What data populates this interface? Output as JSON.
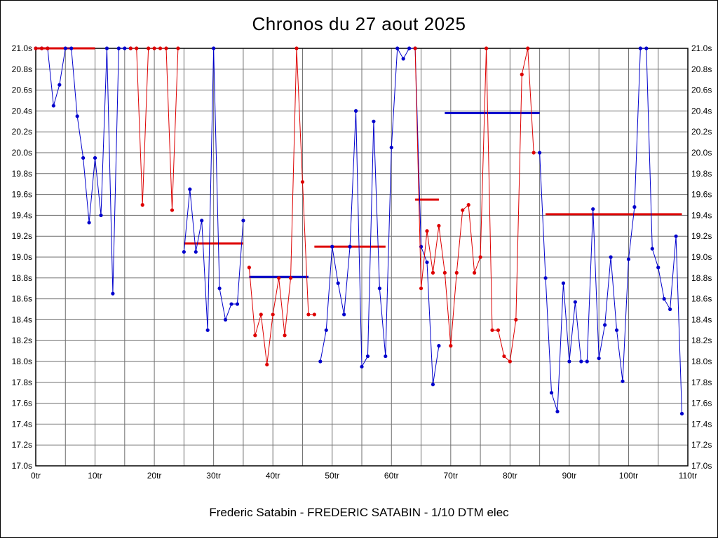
{
  "title": "Chronos du 27 aout 2025",
  "caption": "Frederic Satabin - FREDERIC SATABIN - 1/10 DTM elec",
  "colors": {
    "blue_series": "#0000CC",
    "red_series": "#DD0000",
    "grid": "#6E6E6E",
    "frame": "#000000",
    "background": "#FFFFFF",
    "text": "#000000"
  },
  "chart_data": {
    "type": "line",
    "title": "Chronos du 27 aout 2025",
    "subtitle": "Frederic Satabin - FREDERIC SATABIN - 1/10 DTM elec",
    "xlabel": "",
    "ylabel": "",
    "x_unit": "tr",
    "y_unit": "s",
    "xlim": [
      0,
      110
    ],
    "ylim": [
      17.0,
      21.0
    ],
    "grid": true,
    "x_grid_step": 5,
    "y_grid_step": 0.2,
    "clip_note": "lap times above 21.0s are clipped to the 21.0s top line",
    "x_ticks": [
      {
        "value": 0,
        "label": "0tr"
      },
      {
        "value": 10,
        "label": "10tr"
      },
      {
        "value": 20,
        "label": "20tr"
      },
      {
        "value": 30,
        "label": "30tr"
      },
      {
        "value": 40,
        "label": "40tr"
      },
      {
        "value": 50,
        "label": "50tr"
      },
      {
        "value": 60,
        "label": "60tr"
      },
      {
        "value": 70,
        "label": "70tr"
      },
      {
        "value": 80,
        "label": "80tr"
      },
      {
        "value": 90,
        "label": "90tr"
      },
      {
        "value": 100,
        "label": "100tr"
      },
      {
        "value": 110,
        "label": "110tr"
      }
    ],
    "y_ticks": [
      {
        "value": 21.0,
        "label": "21.0s"
      },
      {
        "value": 20.8,
        "label": "20.8s"
      },
      {
        "value": 20.6,
        "label": "20.6s"
      },
      {
        "value": 20.4,
        "label": "20.4s"
      },
      {
        "value": 20.2,
        "label": "20.2s"
      },
      {
        "value": 20.0,
        "label": "20.0s"
      },
      {
        "value": 19.8,
        "label": "19.8s"
      },
      {
        "value": 19.6,
        "label": "19.6s"
      },
      {
        "value": 19.4,
        "label": "19.4s"
      },
      {
        "value": 19.2,
        "label": "19.2s"
      },
      {
        "value": 19.0,
        "label": "19.0s"
      },
      {
        "value": 18.8,
        "label": "18.8s"
      },
      {
        "value": 18.6,
        "label": "18.6s"
      },
      {
        "value": 18.4,
        "label": "18.4s"
      },
      {
        "value": 18.2,
        "label": "18.2s"
      },
      {
        "value": 18.0,
        "label": "18.0s"
      },
      {
        "value": 17.8,
        "label": "17.8s"
      },
      {
        "value": 17.6,
        "label": "17.6s"
      },
      {
        "value": 17.4,
        "label": "17.4s"
      },
      {
        "value": 17.2,
        "label": "17.2s"
      },
      {
        "value": 17.0,
        "label": "17.0s"
      }
    ],
    "series": [
      {
        "name": "laps-blue",
        "color": "#0000CC",
        "runs": [
          [
            [
              0,
              21
            ],
            [
              1,
              21
            ],
            [
              2,
              21
            ],
            [
              3,
              20.45
            ],
            [
              4,
              20.65
            ],
            [
              5,
              21
            ],
            [
              6,
              21
            ],
            [
              7,
              20.35
            ],
            [
              8,
              19.95
            ],
            [
              9,
              19.33
            ],
            [
              10,
              19.95
            ],
            [
              11,
              19.4
            ],
            [
              12,
              21
            ],
            [
              13,
              18.65
            ],
            [
              14,
              21
            ],
            [
              15,
              21
            ],
            [
              16,
              21
            ]
          ],
          [
            [
              25,
              19.05
            ],
            [
              26,
              19.65
            ],
            [
              27,
              19.05
            ],
            [
              28,
              19.35
            ],
            [
              29,
              18.3
            ],
            [
              30,
              21
            ],
            [
              31,
              18.7
            ],
            [
              32,
              18.4
            ],
            [
              33,
              18.55
            ],
            [
              34,
              18.55
            ],
            [
              35,
              19.35
            ]
          ],
          [
            [
              48,
              18.0
            ],
            [
              49,
              18.3
            ],
            [
              50,
              19.1
            ],
            [
              51,
              18.75
            ],
            [
              52,
              18.45
            ],
            [
              53,
              19.1
            ],
            [
              54,
              20.4
            ],
            [
              55,
              17.95
            ],
            [
              56,
              18.05
            ],
            [
              57,
              20.3
            ],
            [
              58,
              18.7
            ],
            [
              59,
              18.05
            ],
            [
              60,
              20.05
            ],
            [
              61,
              21
            ],
            [
              62,
              20.9
            ],
            [
              63,
              21
            ],
            [
              64,
              21
            ],
            [
              65,
              19.1
            ],
            [
              66,
              18.95
            ],
            [
              67,
              17.78
            ],
            [
              68,
              18.15
            ]
          ],
          [
            [
              85,
              20.0
            ],
            [
              86,
              18.8
            ],
            [
              87,
              17.7
            ],
            [
              88,
              17.52
            ],
            [
              89,
              18.75
            ],
            [
              90,
              18.0
            ],
            [
              91,
              18.57
            ],
            [
              92,
              18.0
            ],
            [
              93,
              18.0
            ],
            [
              94,
              19.46
            ],
            [
              95,
              18.03
            ],
            [
              96,
              18.35
            ],
            [
              97,
              19.0
            ],
            [
              98,
              18.3
            ],
            [
              99,
              17.81
            ],
            [
              100,
              18.98
            ],
            [
              101,
              19.48
            ],
            [
              102,
              21
            ],
            [
              103,
              21
            ],
            [
              104,
              19.08
            ],
            [
              105,
              18.9
            ],
            [
              106,
              18.6
            ],
            [
              107,
              18.5
            ],
            [
              108,
              19.2
            ],
            [
              109,
              17.5
            ]
          ]
        ]
      },
      {
        "name": "laps-red",
        "color": "#DD0000",
        "runs": [
          [
            [
              0,
              21
            ],
            [
              1,
              21
            ],
            [
              2,
              21
            ]
          ],
          [
            [
              16,
              21
            ],
            [
              17,
              21
            ],
            [
              18,
              19.5
            ],
            [
              19,
              21
            ],
            [
              20,
              21
            ],
            [
              21,
              21
            ],
            [
              22,
              21
            ],
            [
              23,
              19.45
            ],
            [
              24,
              21
            ]
          ],
          [
            [
              36,
              18.9
            ],
            [
              37,
              18.25
            ],
            [
              38,
              18.45
            ],
            [
              39,
              17.97
            ],
            [
              40,
              18.45
            ],
            [
              41,
              18.8
            ],
            [
              42,
              18.25
            ],
            [
              43,
              18.8
            ],
            [
              44,
              21
            ],
            [
              45,
              19.72
            ],
            [
              46,
              18.45
            ],
            [
              47,
              18.45
            ]
          ],
          [
            [
              64,
              21
            ],
            [
              65,
              18.7
            ],
            [
              66,
              19.25
            ],
            [
              67,
              18.85
            ],
            [
              68,
              19.3
            ],
            [
              69,
              18.85
            ],
            [
              70,
              18.15
            ],
            [
              71,
              18.85
            ],
            [
              72,
              19.45
            ],
            [
              73,
              19.5
            ],
            [
              74,
              18.85
            ],
            [
              75,
              19.0
            ],
            [
              76,
              21
            ],
            [
              77,
              18.3
            ],
            [
              78,
              18.3
            ],
            [
              79,
              18.05
            ],
            [
              80,
              18.0
            ],
            [
              81,
              18.4
            ],
            [
              82,
              20.75
            ],
            [
              83,
              21
            ],
            [
              84,
              20.0
            ]
          ]
        ]
      }
    ],
    "average_segments": [
      {
        "color": "#DD0000",
        "from": 0,
        "to": 10,
        "value": 21.0
      },
      {
        "color": "#DD0000",
        "from": 25,
        "to": 35,
        "value": 19.13
      },
      {
        "color": "#0000CC",
        "from": 36,
        "to": 46,
        "value": 18.81
      },
      {
        "color": "#DD0000",
        "from": 47,
        "to": 59,
        "value": 19.1
      },
      {
        "color": "#DD0000",
        "from": 64,
        "to": 68,
        "value": 19.55
      },
      {
        "color": "#0000CC",
        "from": 69,
        "to": 85,
        "value": 20.38
      },
      {
        "color": "#DD0000",
        "from": 86,
        "to": 109,
        "value": 19.41
      }
    ],
    "legend_position": "none"
  }
}
